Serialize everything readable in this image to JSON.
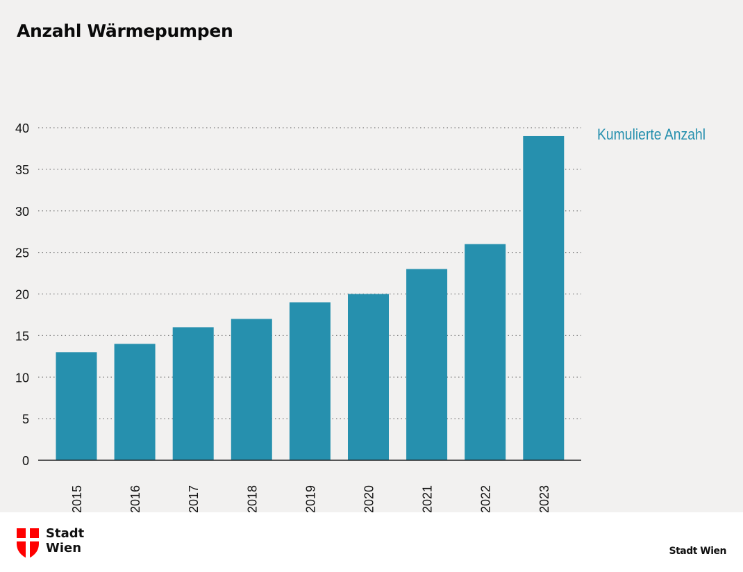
{
  "header": {
    "title": "Anzahl Wärmepumpen"
  },
  "chart_data": {
    "type": "bar",
    "title": "Anzahl Wärmepumpen",
    "xlabel": "",
    "ylabel": "",
    "categories": [
      "2015",
      "2016",
      "2017",
      "2018",
      "2019",
      "2020",
      "2021",
      "2022",
      "2023"
    ],
    "series": [
      {
        "name": "Kumulierte Anzahl",
        "values": [
          13,
          14,
          16,
          17,
          19,
          20,
          23,
          26,
          39
        ],
        "color": "#2690ae"
      }
    ],
    "ylim": [
      0,
      40
    ],
    "yticks": [
      0,
      5,
      10,
      15,
      20,
      25,
      30,
      35,
      40
    ],
    "ytick_labels": [
      "0",
      "5",
      "10",
      "15",
      "20",
      "25",
      "30",
      "35",
      "40"
    ],
    "grid": true,
    "grid_style": "dotted",
    "legend_placement": "top-right",
    "legend_label": "Kumulierte Anzahl"
  },
  "footer": {
    "logo_line1": "Stadt",
    "logo_line2": "Wien",
    "logo_icon": "vienna-coat-of-arms-icon",
    "source": "Stadt Wien",
    "logo_color": "#ff0000"
  }
}
